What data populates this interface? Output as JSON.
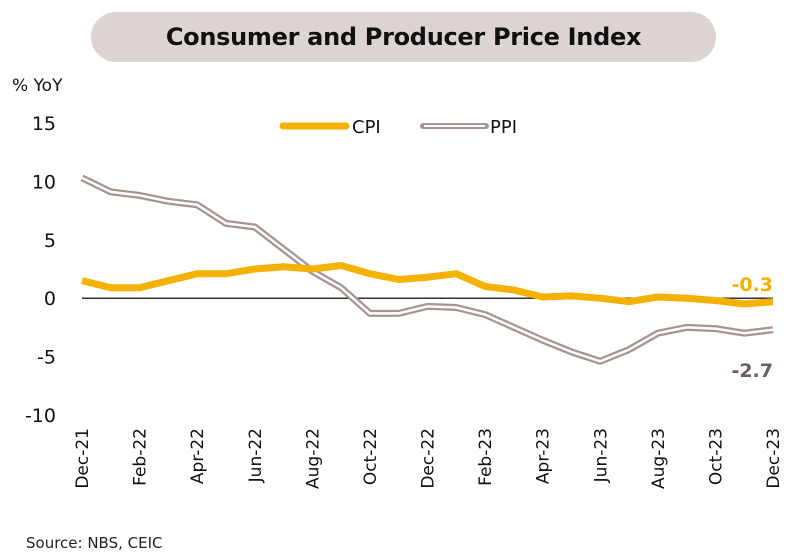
{
  "title": "Consumer and Producer Price Index",
  "y_unit": "% YoY",
  "source": "Source:  NBS, CEIC",
  "colors": {
    "cpi": "#f5b100",
    "ppi": "#a99390",
    "ppi_inner": "#ffffff",
    "zero_line": "#333333",
    "cpi_label": "#f5b100",
    "ppi_label": "#6e5d5a",
    "title_bg": "#dcd4d2"
  },
  "chart_data": {
    "type": "line",
    "title": "Consumer and Producer Price Index",
    "xlabel": "",
    "ylabel": "% YoY",
    "ylim": [
      -10,
      15
    ],
    "yticks": [
      15,
      10,
      5,
      0,
      -5,
      -10
    ],
    "grid": false,
    "legend_position": "top-center",
    "x": [
      "Dec-21",
      "Jan-22",
      "Feb-22",
      "Mar-22",
      "Apr-22",
      "May-22",
      "Jun-22",
      "Jul-22",
      "Aug-22",
      "Sep-22",
      "Oct-22",
      "Nov-22",
      "Dec-22",
      "Jan-23",
      "Feb-23",
      "Mar-23",
      "Apr-23",
      "May-23",
      "Jun-23",
      "Jul-23",
      "Aug-23",
      "Sep-23",
      "Oct-23",
      "Nov-23",
      "Dec-23"
    ],
    "xtick_labels": [
      "Dec-21",
      "Feb-22",
      "Apr-22",
      "Jun-22",
      "Aug-22",
      "Oct-22",
      "Dec-22",
      "Feb-23",
      "Apr-23",
      "Jun-23",
      "Aug-23",
      "Oct-23",
      "Dec-23"
    ],
    "series": [
      {
        "name": "CPI",
        "values": [
          1.5,
          0.9,
          0.9,
          1.5,
          2.1,
          2.1,
          2.5,
          2.7,
          2.5,
          2.8,
          2.1,
          1.6,
          1.8,
          2.1,
          1.0,
          0.7,
          0.1,
          0.2,
          0.0,
          -0.3,
          0.1,
          0.0,
          -0.2,
          -0.5,
          -0.3
        ]
      },
      {
        "name": "PPI",
        "values": [
          10.3,
          9.1,
          8.8,
          8.3,
          8.0,
          6.4,
          6.1,
          4.2,
          2.3,
          0.9,
          -1.3,
          -1.3,
          -0.7,
          -0.8,
          -1.4,
          -2.5,
          -3.6,
          -4.6,
          -5.4,
          -4.4,
          -3.0,
          -2.5,
          -2.6,
          -3.0,
          -2.7
        ]
      }
    ],
    "annotations": [
      {
        "series": "CPI",
        "text": "-0.3"
      },
      {
        "series": "PPI",
        "text": "-2.7"
      }
    ]
  }
}
